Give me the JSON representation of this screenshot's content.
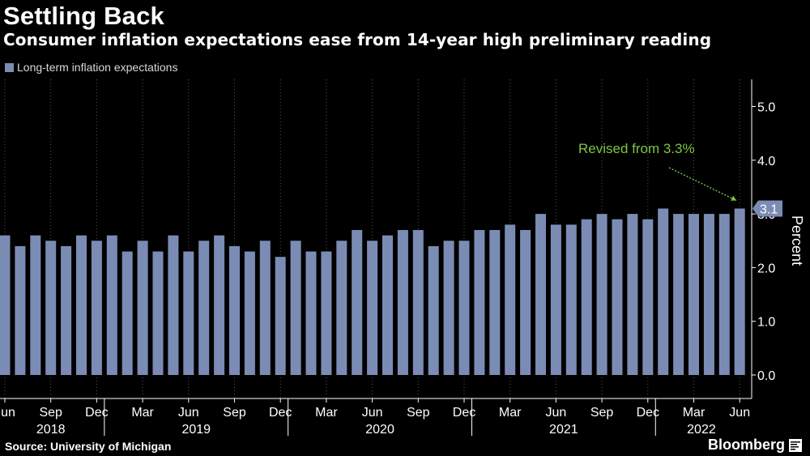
{
  "header": {
    "title": "Settling Back",
    "subtitle": "Consumer inflation expectations ease from 14-year high preliminary reading"
  },
  "legend": {
    "label": "Long-term inflation expectations"
  },
  "footer": {
    "source": "Source: University of Michigan",
    "brand": "Bloomberg"
  },
  "colors": {
    "background": "#000000",
    "bar": "#7b8cb4",
    "grid": "#555555",
    "annotation": "#7ec642",
    "text": "#ffffff"
  },
  "chart_data": {
    "type": "bar",
    "title": "Settling Back",
    "subtitle": "Consumer inflation expectations ease from 14-year high preliminary reading",
    "ylabel": "Percent",
    "ylim": [
      0,
      5.5
    ],
    "y_ticks": [
      "0.0",
      "1.0",
      "2.0",
      "3.0",
      "4.0",
      "5.0"
    ],
    "y_tick_values": [
      0,
      1,
      2,
      3,
      4,
      5
    ],
    "categories": [
      "Jun 2018",
      "Jul 2018",
      "Aug 2018",
      "Sep 2018",
      "Oct 2018",
      "Nov 2018",
      "Dec 2018",
      "Jan 2019",
      "Feb 2019",
      "Mar 2019",
      "Apr 2019",
      "May 2019",
      "Jun 2019",
      "Jul 2019",
      "Aug 2019",
      "Sep 2019",
      "Oct 2019",
      "Nov 2019",
      "Dec 2019",
      "Jan 2020",
      "Feb 2020",
      "Mar 2020",
      "Apr 2020",
      "May 2020",
      "Jun 2020",
      "Jul 2020",
      "Aug 2020",
      "Sep 2020",
      "Oct 2020",
      "Nov 2020",
      "Dec 2020",
      "Jan 2021",
      "Feb 2021",
      "Mar 2021",
      "Apr 2021",
      "May 2021",
      "Jun 2021",
      "Jul 2021",
      "Aug 2021",
      "Sep 2021",
      "Oct 2021",
      "Nov 2021",
      "Dec 2021",
      "Jan 2022",
      "Feb 2022",
      "Mar 2022",
      "Apr 2022",
      "May 2022",
      "Jun 2022"
    ],
    "series": [
      {
        "name": "Long-term inflation expectations",
        "values": [
          2.6,
          2.4,
          2.6,
          2.5,
          2.4,
          2.6,
          2.5,
          2.6,
          2.3,
          2.5,
          2.3,
          2.6,
          2.3,
          2.5,
          2.6,
          2.4,
          2.3,
          2.5,
          2.2,
          2.5,
          2.3,
          2.3,
          2.5,
          2.7,
          2.5,
          2.6,
          2.7,
          2.7,
          2.4,
          2.5,
          2.5,
          2.7,
          2.7,
          2.8,
          2.7,
          3.0,
          2.8,
          2.8,
          2.9,
          3.0,
          2.9,
          3.0,
          2.9,
          3.1,
          3.0,
          3.0,
          3.0,
          3.0,
          3.1
        ]
      }
    ],
    "x_tick_labels": [
      {
        "label": "Jun",
        "index": 0
      },
      {
        "label": "Sep",
        "index": 3
      },
      {
        "label": "Dec",
        "index": 6
      },
      {
        "label": "Mar",
        "index": 9
      },
      {
        "label": "Jun",
        "index": 12
      },
      {
        "label": "Sep",
        "index": 15
      },
      {
        "label": "Dec",
        "index": 18
      },
      {
        "label": "Mar",
        "index": 21
      },
      {
        "label": "Jun",
        "index": 24
      },
      {
        "label": "Sep",
        "index": 27
      },
      {
        "label": "Dec",
        "index": 30
      },
      {
        "label": "Mar",
        "index": 33
      },
      {
        "label": "Jun",
        "index": 36
      },
      {
        "label": "Sep",
        "index": 39
      },
      {
        "label": "Dec",
        "index": 42
      },
      {
        "label": "Mar",
        "index": 45
      },
      {
        "label": "Jun",
        "index": 48
      }
    ],
    "year_labels": [
      {
        "label": "2018",
        "start": 0,
        "end": 6
      },
      {
        "label": "2019",
        "start": 7,
        "end": 18
      },
      {
        "label": "2020",
        "start": 19,
        "end": 30
      },
      {
        "label": "2021",
        "start": 31,
        "end": 42
      },
      {
        "label": "2022",
        "start": 43,
        "end": 48
      }
    ],
    "last_value_label": "3.1",
    "annotation": {
      "text": "Revised from 3.3%",
      "target_index": 48
    },
    "grid": "vertical dotted"
  }
}
